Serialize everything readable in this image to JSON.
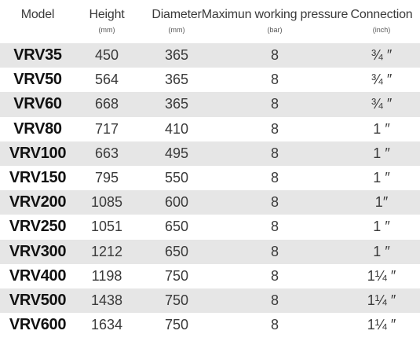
{
  "table": {
    "headers": [
      {
        "label": "Model",
        "unit": ""
      },
      {
        "label": "Height",
        "unit": "(mm)"
      },
      {
        "label": "Diameter",
        "unit": "(mm)"
      },
      {
        "label": "Maximun working pressure",
        "unit": "(bar)"
      },
      {
        "label": "Connection",
        "unit": "(inch)"
      }
    ],
    "rows": [
      {
        "model": "VRV35",
        "height": "450",
        "diameter": "365",
        "pressure": "8",
        "connection": "¾ ″"
      },
      {
        "model": "VRV50",
        "height": "564",
        "diameter": "365",
        "pressure": "8",
        "connection": "¾ ″"
      },
      {
        "model": "VRV60",
        "height": "668",
        "diameter": "365",
        "pressure": "8",
        "connection": "¾ ″"
      },
      {
        "model": "VRV80",
        "height": "717",
        "diameter": "410",
        "pressure": "8",
        "connection": "1 ″"
      },
      {
        "model": "VRV100",
        "height": "663",
        "diameter": "495",
        "pressure": "8",
        "connection": "1 ″"
      },
      {
        "model": "VRV150",
        "height": "795",
        "diameter": "550",
        "pressure": "8",
        "connection": "1 ″"
      },
      {
        "model": "VRV200",
        "height": "1085",
        "diameter": "600",
        "pressure": "8",
        "connection": "1″"
      },
      {
        "model": "VRV250",
        "height": "1051",
        "diameter": "650",
        "pressure": "8",
        "connection": "1 ″"
      },
      {
        "model": "VRV300",
        "height": "1212",
        "diameter": "650",
        "pressure": "8",
        "connection": "1 ″"
      },
      {
        "model": "VRV400",
        "height": "1198",
        "diameter": "750",
        "pressure": "8",
        "connection": "1¼ ″"
      },
      {
        "model": "VRV500",
        "height": "1438",
        "diameter": "750",
        "pressure": "8",
        "connection": "1¼ ″"
      },
      {
        "model": "VRV600",
        "height": "1634",
        "diameter": "750",
        "pressure": "8",
        "connection": "1¼ ″"
      }
    ]
  }
}
